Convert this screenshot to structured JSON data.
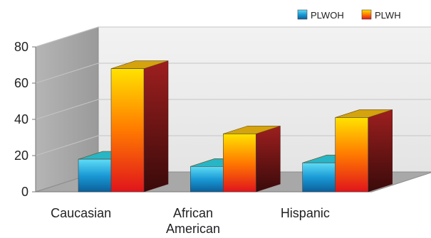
{
  "chart_data": {
    "type": "bar",
    "categories": [
      [
        "Caucasian"
      ],
      [
        "African",
        "American"
      ],
      [
        "Hispanic"
      ]
    ],
    "series": [
      {
        "name": "PLWOH",
        "values": [
          18,
          14,
          16
        ],
        "colors": {
          "light": "#5fdcf5",
          "mid": "#1a9ad6",
          "dark": "#0b5f9a",
          "side": "#0f6f87",
          "top": "#28b5c5"
        }
      },
      {
        "name": "PLWH",
        "values": [
          68,
          32,
          41
        ],
        "colors": {
          "light": "#ffe200",
          "mid": "#ff7a00",
          "dark": "#e0141c",
          "side": "#9e1f1f",
          "top": "#d4a30e"
        }
      }
    ],
    "yticks": [
      0,
      20,
      40,
      60,
      80
    ],
    "ylim": [
      0,
      80
    ],
    "title": "",
    "xlabel": "",
    "ylabel": "",
    "legend_position": "top-right",
    "grid": true
  }
}
